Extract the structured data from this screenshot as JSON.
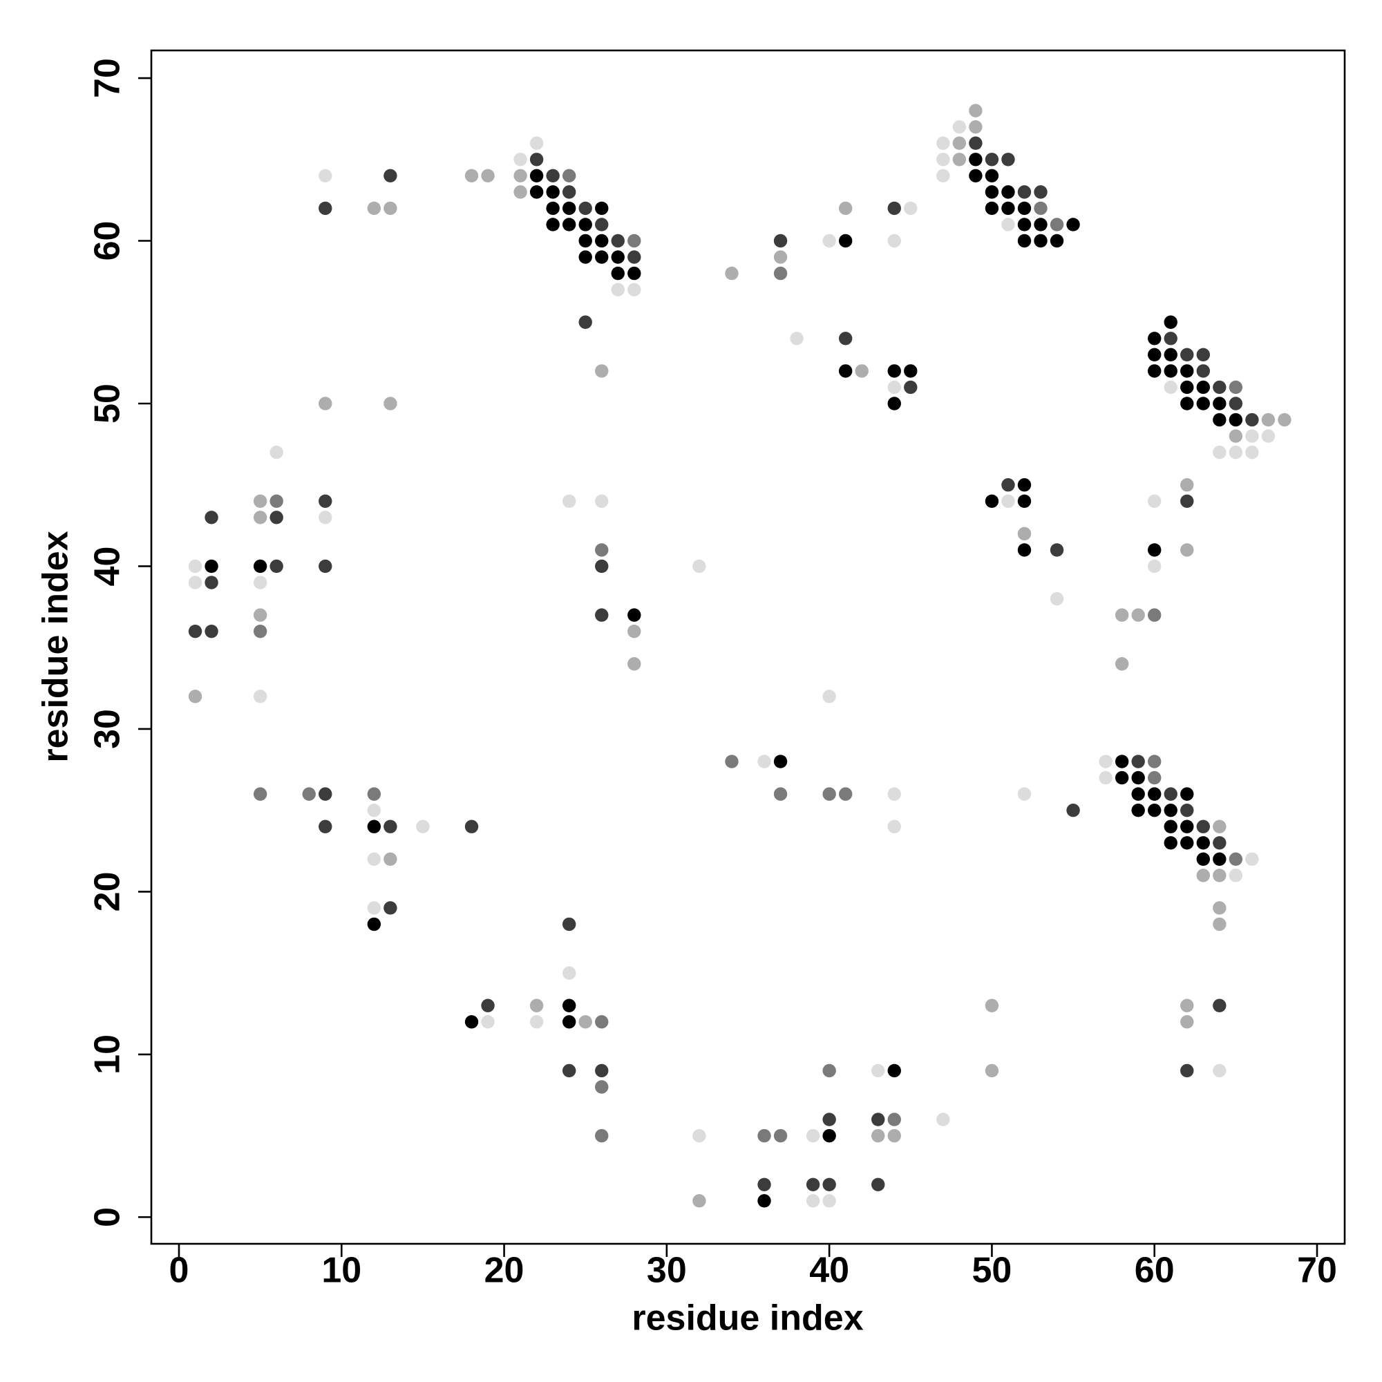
{
  "chart_data": {
    "type": "scatter",
    "xlabel": "residue index",
    "ylabel": "residue index",
    "xlim": [
      -1.7,
      71.7
    ],
    "ylim": [
      -1.64,
      71.7
    ],
    "xticks": [
      0,
      10,
      20,
      30,
      40,
      50,
      60,
      70
    ],
    "yticks": [
      0,
      10,
      20,
      30,
      40,
      50,
      60,
      70
    ],
    "series": [
      {
        "color": "#000000",
        "x": [
          49,
          22,
          49,
          50,
          22,
          23,
          50,
          51,
          23,
          24,
          26,
          50,
          51,
          52,
          23,
          24,
          25,
          52,
          53,
          55,
          25,
          26,
          41,
          52,
          53,
          54,
          25,
          26,
          27,
          27,
          28,
          61,
          60,
          60,
          61,
          41,
          44,
          45,
          60,
          61,
          62,
          62,
          63,
          44,
          62,
          63,
          64,
          64,
          65,
          52,
          50,
          52,
          52,
          60,
          2,
          5,
          28,
          37,
          58,
          58,
          59,
          59,
          60,
          62,
          59,
          60,
          61,
          12,
          61,
          62,
          61,
          62,
          63,
          63,
          64,
          12,
          24,
          18,
          24,
          44,
          40,
          36
        ],
        "values": [
          65,
          64,
          64,
          64,
          63,
          63,
          63,
          63,
          62,
          62,
          62,
          62,
          62,
          62,
          61,
          61,
          61,
          61,
          61,
          61,
          60,
          60,
          60,
          60,
          60,
          60,
          59,
          59,
          59,
          58,
          58,
          55,
          54,
          53,
          53,
          52,
          52,
          52,
          52,
          52,
          52,
          51,
          51,
          50,
          50,
          50,
          50,
          49,
          49,
          45,
          44,
          44,
          41,
          41,
          40,
          40,
          37,
          28,
          28,
          27,
          27,
          26,
          26,
          26,
          25,
          25,
          25,
          24,
          24,
          24,
          23,
          23,
          23,
          22,
          22,
          18,
          13,
          12,
          12,
          9,
          5,
          1
        ]
      },
      {
        "color": "#3c3c3c",
        "x": [
          49,
          22,
          50,
          51,
          13,
          23,
          24,
          52,
          53,
          9,
          25,
          44,
          26,
          27,
          37,
          28,
          25,
          41,
          61,
          62,
          63,
          63,
          45,
          64,
          65,
          66,
          51,
          9,
          62,
          2,
          6,
          54,
          6,
          9,
          26,
          2,
          26,
          1,
          2,
          59,
          9,
          61,
          55,
          62,
          9,
          13,
          18,
          63,
          64,
          13,
          24,
          19,
          64,
          24,
          26,
          62,
          40,
          43,
          36,
          39,
          40,
          43
        ],
        "values": [
          66,
          65,
          65,
          65,
          64,
          64,
          63,
          63,
          63,
          62,
          62,
          62,
          61,
          60,
          60,
          59,
          55,
          54,
          54,
          53,
          53,
          52,
          51,
          51,
          50,
          49,
          45,
          44,
          44,
          43,
          43,
          41,
          40,
          40,
          40,
          39,
          37,
          36,
          36,
          28,
          26,
          26,
          25,
          25,
          24,
          24,
          24,
          24,
          23,
          19,
          18,
          13,
          13,
          9,
          9,
          9,
          6,
          6,
          2,
          2,
          2,
          2
        ]
      },
      {
        "color": "#7a7a7a",
        "x": [
          24,
          53,
          54,
          28,
          37,
          65,
          6,
          26,
          60,
          5,
          34,
          60,
          60,
          5,
          8,
          12,
          37,
          40,
          41,
          65,
          26,
          40,
          26,
          44,
          26,
          36,
          37
        ],
        "values": [
          64,
          62,
          61,
          60,
          58,
          51,
          44,
          41,
          37,
          36,
          28,
          28,
          27,
          26,
          26,
          26,
          26,
          26,
          26,
          22,
          12,
          9,
          8,
          6,
          5,
          5,
          5
        ]
      },
      {
        "color": "#adadad",
        "x": [
          49,
          49,
          48,
          48,
          18,
          19,
          21,
          21,
          12,
          13,
          41,
          37,
          34,
          26,
          42,
          9,
          13,
          67,
          68,
          65,
          62,
          5,
          5,
          52,
          62,
          5,
          58,
          59,
          28,
          28,
          58,
          1,
          64,
          13,
          63,
          64,
          64,
          64,
          22,
          50,
          62,
          25,
          62,
          50,
          43,
          44,
          32
        ],
        "values": [
          68,
          67,
          66,
          65,
          64,
          64,
          64,
          63,
          62,
          62,
          62,
          59,
          58,
          52,
          52,
          50,
          50,
          49,
          49,
          48,
          45,
          44,
          43,
          42,
          41,
          37,
          37,
          37,
          36,
          34,
          34,
          32,
          24,
          22,
          21,
          21,
          19,
          18,
          13,
          13,
          13,
          12,
          12,
          9,
          5,
          5,
          1
        ]
      },
      {
        "color": "#dcdcdc",
        "x": [
          48,
          22,
          47,
          21,
          47,
          9,
          47,
          45,
          51,
          40,
          44,
          27,
          28,
          38,
          44,
          61,
          66,
          67,
          6,
          64,
          65,
          66,
          24,
          26,
          51,
          60,
          9,
          1,
          32,
          60,
          1,
          5,
          54,
          5,
          40,
          36,
          57,
          57,
          44,
          52,
          12,
          15,
          44,
          12,
          66,
          65,
          12,
          24,
          19,
          22,
          43,
          64,
          47,
          32,
          39,
          39,
          40
        ],
        "values": [
          67,
          66,
          66,
          65,
          65,
          64,
          64,
          62,
          61,
          60,
          60,
          57,
          57,
          54,
          51,
          51,
          48,
          48,
          47,
          47,
          47,
          47,
          44,
          44,
          44,
          44,
          43,
          40,
          40,
          40,
          39,
          39,
          38,
          32,
          32,
          28,
          28,
          27,
          26,
          26,
          25,
          24,
          24,
          22,
          22,
          21,
          19,
          15,
          12,
          12,
          9,
          9,
          6,
          5,
          5,
          1,
          1
        ]
      }
    ]
  }
}
